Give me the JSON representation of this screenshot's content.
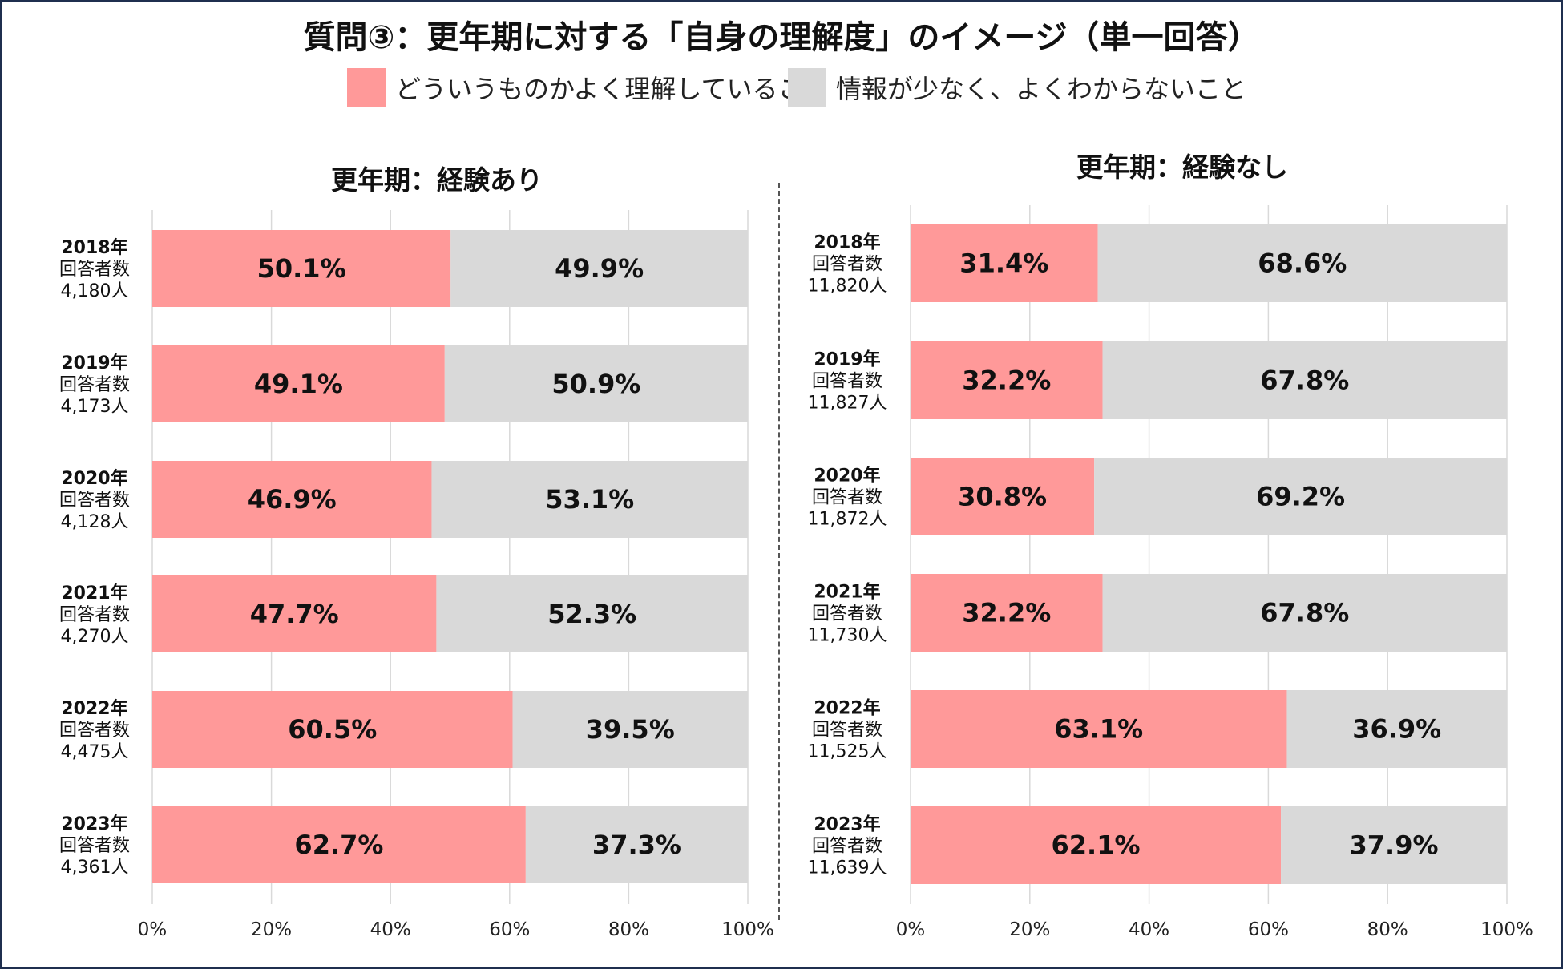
{
  "title": "質問③：更年期に対する「自身の理解度」のイメージ（単一回答）",
  "legend": [
    {
      "label": "どういうものかよく理解していること",
      "color": "#ff9999"
    },
    {
      "label": "情報が少なく、よくわからないこと",
      "color": "#d9d9d9"
    }
  ],
  "chart_data": [
    {
      "type": "bar",
      "stacked": true,
      "orientation": "horizontal",
      "title": "更年期：経験あり",
      "categories": [
        "2018年",
        "2019年",
        "2020年",
        "2021年",
        "2022年",
        "2023年"
      ],
      "respondents_label": "回答者数",
      "respondents": [
        "4,180人",
        "4,173人",
        "4,128人",
        "4,270人",
        "4,475人",
        "4,361人"
      ],
      "series": [
        {
          "name": "どういうものかよく理解していること",
          "values": [
            50.1,
            49.1,
            46.9,
            47.7,
            60.5,
            62.7
          ]
        },
        {
          "name": "情報が少なく、よくわからないこと",
          "values": [
            49.9,
            50.9,
            53.1,
            52.3,
            39.5,
            37.3
          ]
        }
      ],
      "value_labels": [
        [
          "50.1%",
          "49.1%",
          "46.9%",
          "47.7%",
          "60.5%",
          "62.7%"
        ],
        [
          "49.9%",
          "50.9%",
          "53.1%",
          "52.3%",
          "39.5%",
          "37.3%"
        ]
      ],
      "xlim": [
        0,
        100
      ],
      "xticks": [
        "0%",
        "20%",
        "40%",
        "60%",
        "80%",
        "100%"
      ]
    },
    {
      "type": "bar",
      "stacked": true,
      "orientation": "horizontal",
      "title": "更年期：経験なし",
      "categories": [
        "2018年",
        "2019年",
        "2020年",
        "2021年",
        "2022年",
        "2023年"
      ],
      "respondents_label": "回答者数",
      "respondents": [
        "11,820人",
        "11,827人",
        "11,872人",
        "11,730人",
        "11,525人",
        "11,639人"
      ],
      "series": [
        {
          "name": "どういうものかよく理解していること",
          "values": [
            31.4,
            32.2,
            30.8,
            32.2,
            63.1,
            62.1
          ]
        },
        {
          "name": "情報が少なく、よくわからないこと",
          "values": [
            68.6,
            67.8,
            69.2,
            67.8,
            36.9,
            37.9
          ]
        }
      ],
      "value_labels": [
        [
          "31.4%",
          "32.2%",
          "30.8%",
          "32.2%",
          "63.1%",
          "62.1%"
        ],
        [
          "68.6%",
          "67.8%",
          "69.2%",
          "67.8%",
          "36.9%",
          "37.9%"
        ]
      ],
      "xlim": [
        0,
        100
      ],
      "xticks": [
        "0%",
        "20%",
        "40%",
        "60%",
        "80%",
        "100%"
      ]
    }
  ]
}
